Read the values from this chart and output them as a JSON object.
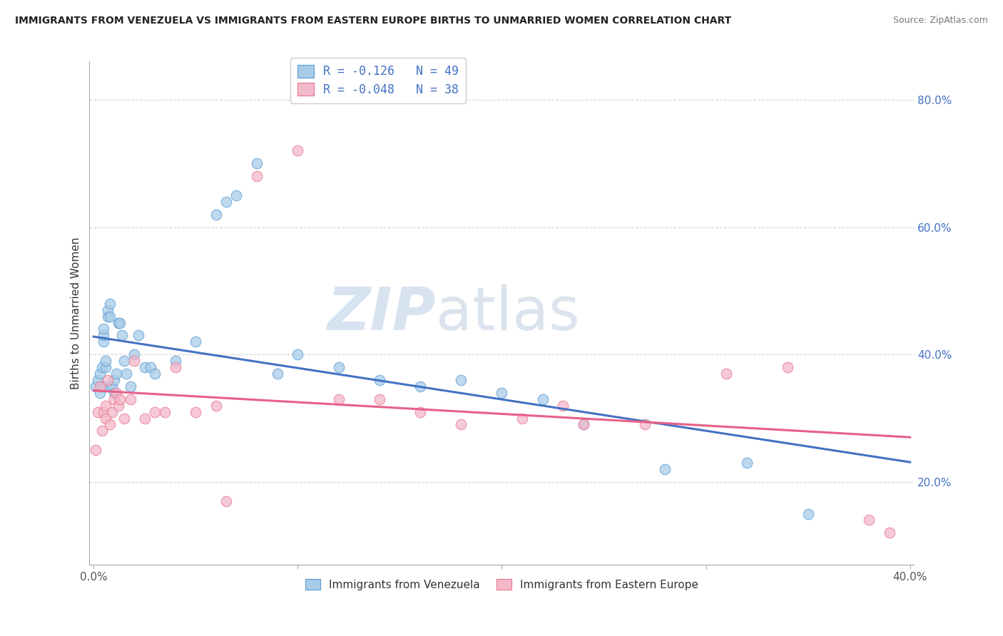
{
  "title": "IMMIGRANTS FROM VENEZUELA VS IMMIGRANTS FROM EASTERN EUROPE BIRTHS TO UNMARRIED WOMEN CORRELATION CHART",
  "source": "Source: ZipAtlas.com",
  "ylabel": "Births to Unmarried Women",
  "legend_label1": "Immigrants from Venezuela",
  "legend_label2": "Immigrants from Eastern Europe",
  "R1": -0.126,
  "N1": 49,
  "R2": -0.048,
  "N2": 38,
  "xlim": [
    -0.002,
    0.402
  ],
  "ylim": [
    0.07,
    0.86
  ],
  "xticks": [
    0.0,
    0.1,
    0.2,
    0.3,
    0.4
  ],
  "xtick_labels_show": [
    "0.0%",
    "",
    "",
    "",
    "40.0%"
  ],
  "yticks": [
    0.2,
    0.4,
    0.6,
    0.8
  ],
  "ytick_labels": [
    "20.0%",
    "40.0%",
    "60.0%",
    "80.0%"
  ],
  "color1": "#a8cce8",
  "color2": "#f4b8cc",
  "edge_color1": "#5b9bd5",
  "edge_color2": "#e8758a",
  "trend_color1": "#4472c4",
  "trend_color2": "#e8608a",
  "watermark_zip": "ZIP",
  "watermark_atlas": "atlas",
  "blue_x": [
    0.001,
    0.002,
    0.003,
    0.003,
    0.004,
    0.004,
    0.005,
    0.005,
    0.005,
    0.006,
    0.006,
    0.006,
    0.007,
    0.007,
    0.008,
    0.008,
    0.009,
    0.01,
    0.01,
    0.011,
    0.012,
    0.013,
    0.014,
    0.015,
    0.016,
    0.018,
    0.02,
    0.022,
    0.025,
    0.028,
    0.03,
    0.04,
    0.05,
    0.06,
    0.065,
    0.07,
    0.08,
    0.09,
    0.1,
    0.12,
    0.14,
    0.16,
    0.18,
    0.2,
    0.22,
    0.24,
    0.28,
    0.32,
    0.35
  ],
  "blue_y": [
    0.35,
    0.36,
    0.37,
    0.34,
    0.38,
    0.35,
    0.42,
    0.43,
    0.44,
    0.35,
    0.38,
    0.39,
    0.46,
    0.47,
    0.46,
    0.48,
    0.35,
    0.34,
    0.36,
    0.37,
    0.45,
    0.45,
    0.43,
    0.39,
    0.37,
    0.35,
    0.4,
    0.43,
    0.38,
    0.38,
    0.37,
    0.39,
    0.42,
    0.62,
    0.64,
    0.65,
    0.7,
    0.37,
    0.4,
    0.38,
    0.36,
    0.35,
    0.36,
    0.34,
    0.33,
    0.29,
    0.22,
    0.23,
    0.15
  ],
  "pink_x": [
    0.001,
    0.002,
    0.003,
    0.004,
    0.005,
    0.006,
    0.006,
    0.007,
    0.008,
    0.009,
    0.01,
    0.011,
    0.012,
    0.013,
    0.015,
    0.018,
    0.02,
    0.025,
    0.03,
    0.035,
    0.04,
    0.05,
    0.06,
    0.065,
    0.08,
    0.1,
    0.12,
    0.14,
    0.16,
    0.18,
    0.21,
    0.23,
    0.24,
    0.27,
    0.31,
    0.34,
    0.38,
    0.39
  ],
  "pink_y": [
    0.25,
    0.31,
    0.35,
    0.28,
    0.31,
    0.3,
    0.32,
    0.36,
    0.29,
    0.31,
    0.33,
    0.34,
    0.32,
    0.33,
    0.3,
    0.33,
    0.39,
    0.3,
    0.31,
    0.31,
    0.38,
    0.31,
    0.32,
    0.17,
    0.68,
    0.72,
    0.33,
    0.33,
    0.31,
    0.29,
    0.3,
    0.32,
    0.29,
    0.29,
    0.37,
    0.38,
    0.14,
    0.12
  ]
}
